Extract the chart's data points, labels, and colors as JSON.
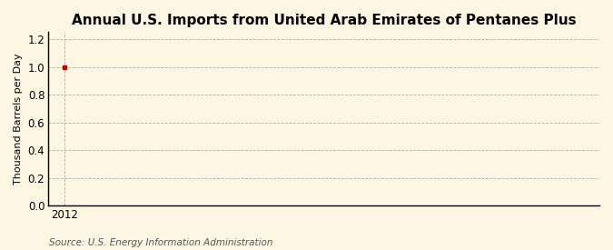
{
  "title": "Annual U.S. Imports from United Arab Emirates of Pentanes Plus",
  "ylabel": "Thousand Barrels per Day",
  "source_text": "Source: U.S. Energy Information Administration",
  "x_data": [
    2012
  ],
  "y_data": [
    1.0
  ],
  "xlim": [
    2011.7,
    2022.0
  ],
  "ylim": [
    0.0,
    1.25
  ],
  "yticks": [
    0.0,
    0.2,
    0.4,
    0.6,
    0.8,
    1.0,
    1.2
  ],
  "xticks": [
    2012
  ],
  "point_color": "#cc0000",
  "point_marker": "s",
  "point_size": 3.5,
  "grid_color": "#b0b0b0",
  "background_color": "#fdf6e3",
  "title_fontsize": 11,
  "label_fontsize": 8,
  "tick_fontsize": 8.5,
  "source_fontsize": 7.5
}
